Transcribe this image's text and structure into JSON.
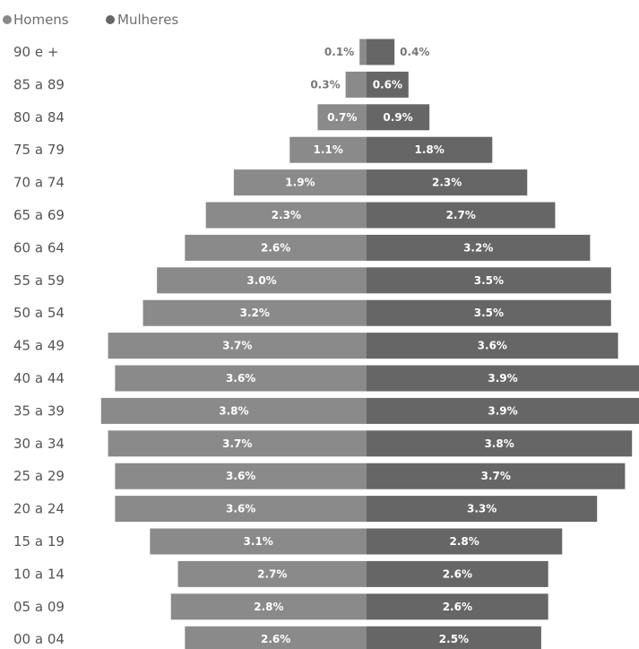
{
  "chart_data": {
    "type": "bar",
    "orientation": "horizontal-diverging",
    "title": "",
    "legend": {
      "placement": "top-left",
      "items": [
        "Homens",
        "Mulheres"
      ]
    },
    "categories": [
      "90 e +",
      "85 a 89",
      "80 a 84",
      "75 a 79",
      "70 a 74",
      "65 a 69",
      "60 a 64",
      "55 a 59",
      "50 a 54",
      "45 a 49",
      "40 a 44",
      "35 a 39",
      "30 a 34",
      "25 a 29",
      "20 a 24",
      "15 a 19",
      "10 a 14",
      "05 a 09",
      "00 a 04"
    ],
    "series": [
      {
        "name": "Homens",
        "color": "#8a8a8a",
        "values": [
          0.1,
          0.3,
          0.7,
          1.1,
          1.9,
          2.3,
          2.6,
          3.0,
          3.2,
          3.7,
          3.6,
          3.8,
          3.7,
          3.6,
          3.6,
          3.1,
          2.7,
          2.8,
          2.6
        ],
        "labels": [
          "0.1%",
          "0.3%",
          "0.7%",
          "1.1%",
          "1.9%",
          "2.3%",
          "2.6%",
          "3.0%",
          "3.2%",
          "3.7%",
          "3.6%",
          "3.8%",
          "3.7%",
          "3.6%",
          "3.6%",
          "3.1%",
          "2.7%",
          "2.8%",
          "2.6%"
        ]
      },
      {
        "name": "Mulheres",
        "color": "#666666",
        "values": [
          0.4,
          0.6,
          0.9,
          1.8,
          2.3,
          2.7,
          3.2,
          3.5,
          3.5,
          3.6,
          3.9,
          3.9,
          3.8,
          3.7,
          3.3,
          2.8,
          2.6,
          2.6,
          2.5
        ],
        "labels": [
          "0.4%",
          "0.6%",
          "0.9%",
          "1.8%",
          "2.3%",
          "2.7%",
          "3.2%",
          "3.5%",
          "3.5%",
          "3.6%",
          "3.9%",
          "3.9%",
          "3.8%",
          "3.7%",
          "3.3%",
          "2.8%",
          "2.6%",
          "2.6%",
          "2.5%"
        ]
      }
    ],
    "xlim": [
      -3.9,
      3.9
    ],
    "grid": false
  }
}
